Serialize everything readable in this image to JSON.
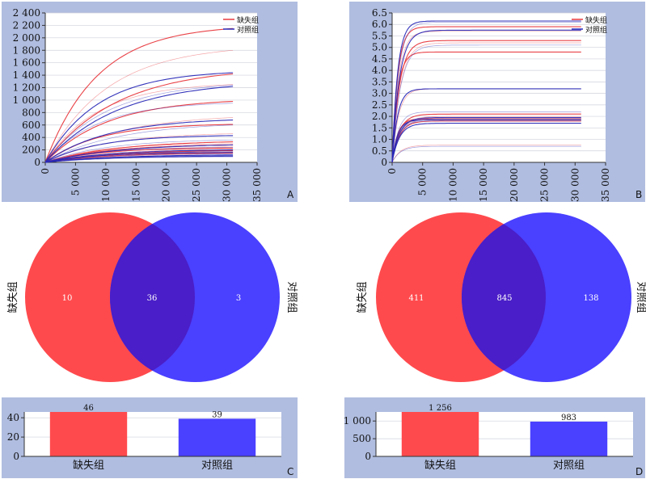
{
  "chart_data": [
    {
      "id": "A",
      "type": "line",
      "panel_label": "A",
      "legend": [
        "缺失组",
        "对照组"
      ],
      "xlim": [
        0,
        35000
      ],
      "xticks": [
        0,
        5000,
        10000,
        15000,
        20000,
        25000,
        30000,
        35000
      ],
      "xtick_labels": [
        "0",
        "5 000",
        "10 000",
        "15 000",
        "20 000",
        "25 000",
        "30 000",
        "35 000"
      ],
      "ylim": [
        0,
        2400
      ],
      "yticks": [
        0,
        200,
        400,
        600,
        800,
        1000,
        1200,
        1400,
        1600,
        1800,
        2000,
        2200,
        2400
      ],
      "ytick_labels": [
        "0",
        "200",
        "400",
        "600",
        "800",
        "1 000",
        "1 200",
        "1 400",
        "1 600",
        "1 800",
        "2 000",
        "2 200",
        "2 400"
      ],
      "x_end": 31000,
      "series_final": {
        "缺失组": [
          2150,
          1800,
          1420,
          1250,
          980,
          720,
          610,
          460,
          330,
          300,
          280,
          250,
          230,
          210,
          190,
          170,
          150,
          140
        ],
        "对照组": [
          1440,
          1240,
          1220,
          950,
          680,
          600,
          430,
          360,
          280,
          240,
          200,
          180,
          160,
          140,
          120,
          110,
          100,
          90
        ]
      },
      "colors": {
        "缺失组": "#e8383d",
        "对照组": "#2a2ab8"
      }
    },
    {
      "id": "B",
      "type": "line",
      "panel_label": "B",
      "legend": [
        "缺失组",
        "对照组"
      ],
      "xlim": [
        0,
        35000
      ],
      "xticks": [
        0,
        5000,
        10000,
        15000,
        20000,
        25000,
        30000,
        35000
      ],
      "xtick_labels": [
        "0",
        "5 000",
        "10 000",
        "15 000",
        "20 000",
        "25 000",
        "30 000",
        "35 000"
      ],
      "ylim": [
        0,
        6.5
      ],
      "yticks": [
        0,
        0.5,
        1.0,
        1.5,
        2.0,
        2.5,
        3.0,
        3.5,
        4.0,
        4.5,
        5.0,
        5.5,
        6.0,
        6.5
      ],
      "ytick_labels": [
        "0",
        "0.5",
        "1.0",
        "1.5",
        "2.0",
        "2.5",
        "3.0",
        "3.5",
        "4.0",
        "4.5",
        "5.0",
        "5.5",
        "6.0",
        "6.5"
      ],
      "x_end": 31000,
      "series_final": {
        "缺失组": [
          5.9,
          5.7,
          5.3,
          5.2,
          4.8,
          3.2,
          2.1,
          2.0,
          1.9,
          1.85,
          1.8,
          0.75
        ],
        "对照组": [
          6.15,
          6.1,
          5.75,
          5.1,
          3.2,
          2.2,
          1.95,
          1.9,
          1.85,
          1.8,
          1.7,
          0.7
        ]
      },
      "colors": {
        "缺失组": "#e8383d",
        "对照组": "#2a2ab8"
      }
    },
    {
      "id": "C-venn",
      "type": "venn",
      "left_label": "缺失组",
      "right_label": "对照组",
      "left_only": "10",
      "intersection": "36",
      "right_only": "3",
      "colors": {
        "left": "#ff4a4d",
        "right": "#4a40ff",
        "overlap": "#4a1ec8"
      }
    },
    {
      "id": "D-venn",
      "type": "venn",
      "left_label": "缺失组",
      "right_label": "对照组",
      "left_only": "411",
      "intersection": "845",
      "right_only": "138",
      "colors": {
        "left": "#ff4a4d",
        "right": "#4a40ff",
        "overlap": "#4a1ec8"
      }
    },
    {
      "id": "C",
      "type": "bar",
      "panel_label": "C",
      "categories": [
        "缺失组",
        "对照组"
      ],
      "values": [
        46,
        39
      ],
      "value_labels": [
        "46",
        "39"
      ],
      "ylim": [
        0,
        46
      ],
      "yticks": [
        0,
        20,
        40
      ],
      "ytick_labels": [
        "0",
        "20",
        "40"
      ],
      "colors": [
        "#ff4a4d",
        "#4a40ff"
      ]
    },
    {
      "id": "D",
      "type": "bar",
      "panel_label": "D",
      "categories": [
        "缺失组",
        "对照组"
      ],
      "values": [
        1256,
        983
      ],
      "value_labels": [
        "1 256",
        "983"
      ],
      "ylim": [
        0,
        1256
      ],
      "yticks": [
        0,
        500,
        1000
      ],
      "ytick_labels": [
        "0",
        "500",
        "1 000"
      ],
      "colors": [
        "#ff4a4d",
        "#4a40ff"
      ]
    }
  ]
}
